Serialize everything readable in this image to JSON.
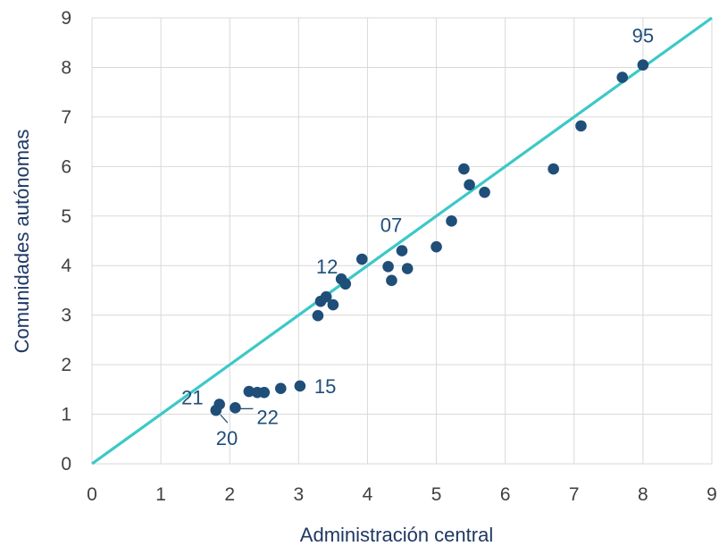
{
  "chart_data": {
    "type": "scatter",
    "xlabel": "Administración central",
    "ylabel": "Comunidades autónomas",
    "xlim": [
      0,
      9
    ],
    "ylim": [
      0,
      9
    ],
    "xticks": [
      "0",
      "1",
      "2",
      "3",
      "4",
      "5",
      "6",
      "7",
      "8",
      "9"
    ],
    "yticks": [
      "0",
      "1",
      "2",
      "3",
      "4",
      "5",
      "6",
      "7",
      "8",
      "9"
    ],
    "grid": true,
    "legend": "none",
    "colors": {
      "points": "#1f4e79",
      "reference_line": "#3cc8c8"
    },
    "reference_line": {
      "from": [
        0,
        0
      ],
      "to": [
        9,
        9
      ]
    },
    "points": [
      {
        "x": 8.0,
        "y": 8.05
      },
      {
        "x": 7.7,
        "y": 7.8
      },
      {
        "x": 7.1,
        "y": 6.82
      },
      {
        "x": 6.7,
        "y": 5.95
      },
      {
        "x": 5.4,
        "y": 5.95
      },
      {
        "x": 5.48,
        "y": 5.63
      },
      {
        "x": 5.7,
        "y": 5.48
      },
      {
        "x": 5.22,
        "y": 4.9
      },
      {
        "x": 4.5,
        "y": 4.3
      },
      {
        "x": 5.0,
        "y": 4.38
      },
      {
        "x": 3.92,
        "y": 4.13
      },
      {
        "x": 4.3,
        "y": 3.98
      },
      {
        "x": 4.58,
        "y": 3.94
      },
      {
        "x": 4.35,
        "y": 3.7
      },
      {
        "x": 3.62,
        "y": 3.73
      },
      {
        "x": 3.68,
        "y": 3.63
      },
      {
        "x": 3.4,
        "y": 3.37
      },
      {
        "x": 3.32,
        "y": 3.28
      },
      {
        "x": 3.5,
        "y": 3.21
      },
      {
        "x": 3.28,
        "y": 2.99
      },
      {
        "x": 3.02,
        "y": 1.57
      },
      {
        "x": 2.74,
        "y": 1.52
      },
      {
        "x": 2.28,
        "y": 1.46
      },
      {
        "x": 2.4,
        "y": 1.44
      },
      {
        "x": 2.5,
        "y": 1.44
      },
      {
        "x": 1.85,
        "y": 1.2
      },
      {
        "x": 1.8,
        "y": 1.08
      },
      {
        "x": 2.08,
        "y": 1.13
      }
    ],
    "annotations": [
      {
        "text": "95",
        "x": 8.0,
        "y": 8.05
      },
      {
        "text": "07",
        "x": 4.5,
        "y": 4.3
      },
      {
        "text": "12",
        "x": 3.62,
        "y": 3.73
      },
      {
        "text": "15",
        "x": 3.02,
        "y": 1.57
      },
      {
        "text": "21",
        "x": 1.85,
        "y": 1.2
      },
      {
        "text": "22",
        "x": 2.08,
        "y": 1.13
      },
      {
        "text": "20",
        "x": 1.8,
        "y": 1.08
      }
    ]
  }
}
